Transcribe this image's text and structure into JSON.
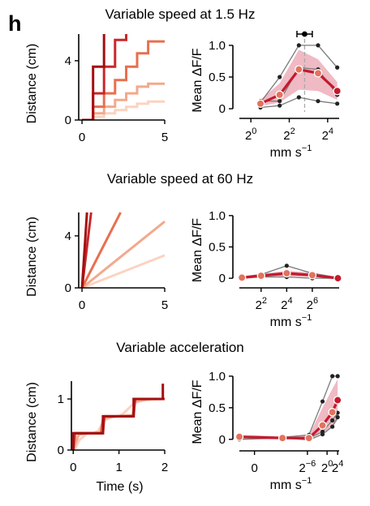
{
  "figure": {
    "panel_letter": "h",
    "colors": {
      "ramp": [
        "#fbd3c0",
        "#f3a98c",
        "#e86f4f",
        "#c9272a",
        "#a20f12"
      ],
      "mean_line": "#c5192d",
      "mean_dot": "#e3725c",
      "band": "#e9a3b0",
      "individual": "#7b7b7b",
      "dark": "#222222"
    }
  },
  "chart_data": [
    {
      "id": "row1-left",
      "type": "line",
      "title": "Variable speed at 1.5 Hz",
      "xlabel": "",
      "ylabel": "Distance (cm)",
      "xlim": [
        -0.2,
        5
      ],
      "ylim": [
        0,
        5.8
      ],
      "xticks": [
        0,
        5
      ],
      "yticks": [
        0,
        4
      ],
      "series": [
        {
          "values": [
            [
              0,
              0
            ],
            [
              0.67,
              0
            ],
            [
              0.67,
              0.22
            ],
            [
              1.33,
              0.22
            ],
            [
              1.33,
              0.45
            ],
            [
              2,
              0.45
            ],
            [
              2,
              0.67
            ],
            [
              2.67,
              0.67
            ],
            [
              2.67,
              0.89
            ],
            [
              3.33,
              0.89
            ],
            [
              3.33,
              1.1
            ],
            [
              4,
              1.1
            ],
            [
              4,
              1.25
            ],
            [
              5,
              1.25
            ]
          ]
        },
        {
          "values": [
            [
              0,
              0
            ],
            [
              0.67,
              0
            ],
            [
              0.67,
              0.45
            ],
            [
              1.33,
              0.45
            ],
            [
              1.33,
              0.9
            ],
            [
              2,
              0.9
            ],
            [
              2,
              1.35
            ],
            [
              2.67,
              1.35
            ],
            [
              2.67,
              1.8
            ],
            [
              3.33,
              1.8
            ],
            [
              3.33,
              2.25
            ],
            [
              4,
              2.25
            ],
            [
              4,
              2.45
            ],
            [
              5,
              2.45
            ]
          ]
        },
        {
          "values": [
            [
              0,
              0
            ],
            [
              0.67,
              0
            ],
            [
              0.67,
              0.9
            ],
            [
              1.33,
              0.9
            ],
            [
              1.33,
              1.8
            ],
            [
              2,
              1.8
            ],
            [
              2,
              2.7
            ],
            [
              2.67,
              2.7
            ],
            [
              2.67,
              3.6
            ],
            [
              3.33,
              3.6
            ],
            [
              3.33,
              4.5
            ],
            [
              4,
              4.5
            ],
            [
              4,
              5.3
            ],
            [
              5,
              5.3
            ]
          ]
        },
        {
          "values": [
            [
              0,
              0
            ],
            [
              0.67,
              0
            ],
            [
              0.67,
              1.8
            ],
            [
              1.33,
              1.8
            ],
            [
              1.33,
              3.6
            ],
            [
              2,
              3.6
            ],
            [
              2,
              5.4
            ],
            [
              2.67,
              5.4
            ],
            [
              2.67,
              5.8
            ]
          ]
        },
        {
          "values": [
            [
              0,
              0
            ],
            [
              0.67,
              0
            ],
            [
              0.67,
              3.6
            ],
            [
              1.33,
              3.6
            ],
            [
              1.33,
              5.8
            ]
          ]
        }
      ]
    },
    {
      "id": "row1-right",
      "type": "line",
      "xlabel": "mm s",
      "xlabel_sup": "−1",
      "ylabel": "Mean ΔF/F",
      "xscale": "log2",
      "xlim": [
        -0.6,
        4.6
      ],
      "ylim": [
        -0.05,
        1.05
      ],
      "xticks": [
        {
          "exp": 0,
          "label": "2",
          "sup": "0"
        },
        {
          "exp": 2,
          "label": "2",
          "sup": "2"
        },
        {
          "exp": 4,
          "label": "2",
          "sup": "4"
        }
      ],
      "yticks": [
        0,
        0.5,
        1.0
      ],
      "ytick_labels": [
        "0",
        "0.5",
        "1.0"
      ],
      "x_exp": [
        0.5,
        1.5,
        2.5,
        3.5,
        4.5
      ],
      "mean": [
        0.08,
        0.22,
        0.62,
        0.56,
        0.28
      ],
      "band_upper": [
        0.14,
        0.4,
        0.93,
        0.78,
        0.42
      ],
      "band_lower": [
        0.04,
        0.1,
        0.3,
        0.28,
        0.14
      ],
      "individual": [
        [
          0.1,
          0.5,
          1.0,
          1.0,
          0.65
        ],
        [
          0.12,
          0.12,
          0.65,
          0.62,
          0.22
        ],
        [
          0.02,
          0.05,
          0.18,
          0.12,
          0.08
        ]
      ],
      "vline_exp": 2.8,
      "preferred_speed": {
        "center_exp": 2.8,
        "lo_exp": 2.4,
        "hi_exp": 3.2,
        "y": 1.13
      }
    },
    {
      "id": "row2-left",
      "type": "line",
      "title": "Variable speed at 60 Hz",
      "xlabel": "",
      "ylabel": "Distance (cm)",
      "xlim": [
        -0.2,
        5
      ],
      "ylim": [
        0,
        5.8
      ],
      "xticks": [
        0,
        5
      ],
      "yticks": [
        0,
        4
      ],
      "series": [
        {
          "values": [
            [
              0,
              0
            ],
            [
              5,
              2.5
            ]
          ]
        },
        {
          "values": [
            [
              0,
              0
            ],
            [
              5,
              5.1
            ]
          ]
        },
        {
          "values": [
            [
              0,
              0
            ],
            [
              2.33,
              5.8
            ]
          ]
        },
        {
          "values": [
            [
              0,
              0
            ],
            [
              0.55,
              5.8
            ]
          ]
        },
        {
          "values": [
            [
              0,
              0
            ],
            [
              0.3,
              5.8
            ]
          ]
        }
      ]
    },
    {
      "id": "row2-right",
      "type": "line",
      "xlabel": "mm s",
      "xlabel_sup": "−1",
      "ylabel": "Mean ΔF/F",
      "xscale": "log2",
      "xlim": [
        0.3,
        8.1
      ],
      "ylim": [
        -0.05,
        1.05
      ],
      "xticks": [
        {
          "exp": 2,
          "label": "2",
          "sup": "2"
        },
        {
          "exp": 4,
          "label": "2",
          "sup": "4"
        },
        {
          "exp": 6,
          "label": "2",
          "sup": "6"
        }
      ],
      "yticks": [
        0,
        0.5,
        1.0
      ],
      "ytick_labels": [
        "0",
        "0.5",
        "1.0"
      ],
      "x_exp": [
        0.5,
        2,
        4,
        6,
        8
      ],
      "mean": [
        0.01,
        0.04,
        0.08,
        0.05,
        0.0
      ],
      "band_upper": [
        0.03,
        0.07,
        0.12,
        0.09,
        0.02
      ],
      "band_lower": [
        -0.01,
        0.01,
        0.03,
        0.02,
        -0.01
      ],
      "individual": [
        [
          0.02,
          0.06,
          0.2,
          0.08,
          0.01
        ],
        [
          0.0,
          0.03,
          0.06,
          0.04,
          -0.01
        ],
        [
          0.01,
          0.02,
          0.02,
          0.0,
          0.0
        ]
      ]
    },
    {
      "id": "row3-left",
      "type": "line",
      "title": "Variable acceleration",
      "xlabel": "Time (s)",
      "ylabel": "Distance (cm)",
      "xlim": [
        -0.04,
        2
      ],
      "ylim": [
        0,
        1.35
      ],
      "xticks": [
        0,
        1,
        2
      ],
      "yticks": [
        0,
        1
      ],
      "series": [
        {
          "values": [
            [
              0,
              0
            ],
            [
              0.04,
              0.03
            ],
            [
              0.14,
              0.2
            ],
            [
              0.3,
              0.32
            ],
            [
              0.45,
              0.33
            ],
            [
              0.55,
              0.38
            ],
            [
              0.67,
              0.58
            ],
            [
              0.85,
              0.65
            ],
            [
              1.0,
              0.66
            ],
            [
              1.1,
              0.72
            ],
            [
              1.33,
              0.92
            ],
            [
              1.55,
              0.98
            ],
            [
              2,
              1.0
            ]
          ]
        },
        {
          "values": [
            [
              0,
              0
            ],
            [
              0.04,
              0.1
            ],
            [
              0.12,
              0.3
            ],
            [
              0.3,
              0.33
            ],
            [
              0.62,
              0.33
            ],
            [
              0.68,
              0.62
            ],
            [
              0.95,
              0.66
            ],
            [
              1.3,
              0.68
            ],
            [
              1.35,
              0.95
            ],
            [
              1.7,
              1.0
            ],
            [
              2,
              1.0
            ]
          ]
        },
        {
          "values": [
            [
              0,
              0
            ],
            [
              0.05,
              0.33
            ],
            [
              0.6,
              0.33
            ],
            [
              0.66,
              0.66
            ],
            [
              1.3,
              0.66
            ],
            [
              1.36,
              1.0
            ],
            [
              2,
              1.0
            ]
          ]
        },
        {
          "values": [
            [
              0,
              0
            ],
            [
              0.02,
              0.33
            ],
            [
              0.65,
              0.33
            ],
            [
              0.68,
              0.66
            ],
            [
              1.32,
              0.66
            ],
            [
              1.35,
              1.0
            ],
            [
              2,
              1.0
            ]
          ]
        },
        {
          "values": [
            [
              0,
              0
            ],
            [
              0,
              0.33
            ],
            [
              0.65,
              0.33
            ],
            [
              0.65,
              0.66
            ],
            [
              1.32,
              0.66
            ],
            [
              1.32,
              1.0
            ],
            [
              1.96,
              1.0
            ],
            [
              1.96,
              1.3
            ]
          ]
        }
      ]
    },
    {
      "id": "row3-right",
      "type": "line",
      "xlabel": "mm s",
      "xlabel_sup": "−1",
      "ylabel": "Mean ΔF/F",
      "xscale": "custom",
      "xlim": [
        -0.2,
        1.12
      ],
      "ylim": [
        -0.08,
        1.05
      ],
      "xticks": [
        {
          "pos": 0,
          "label": "0",
          "sup": ""
        },
        {
          "pos": 0.7,
          "label": "2",
          "sup": "−6"
        },
        {
          "pos": 0.96,
          "label": "2",
          "sup": "0"
        },
        {
          "pos": 1.1,
          "label": "2",
          "sup": "4"
        }
      ],
      "yticks": [
        0,
        0.5,
        1.0
      ],
      "ytick_labels": [
        "0",
        "0.5",
        "1.0"
      ],
      "x_pos": [
        -0.2,
        0.37,
        0.72,
        0.9,
        1.03,
        1.1
      ],
      "mean": [
        0.04,
        0.02,
        0.02,
        0.22,
        0.43,
        0.62
      ],
      "band_upper": [
        0.07,
        0.05,
        0.06,
        0.5,
        0.8,
        0.95
      ],
      "band_lower": [
        0.01,
        0.0,
        0.0,
        0.1,
        0.2,
        0.3
      ],
      "individual": [
        [
          0.05,
          0.03,
          0.07,
          0.6,
          1.0,
          1.0
        ],
        [
          0.03,
          0.01,
          0.02,
          0.12,
          0.3,
          0.42
        ],
        [
          0.0,
          0.02,
          -0.01,
          0.08,
          0.2,
          0.35
        ]
      ]
    }
  ]
}
